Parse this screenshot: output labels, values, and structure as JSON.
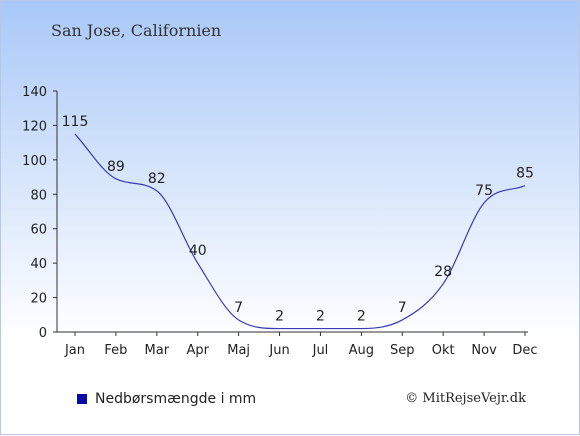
{
  "chart_data": {
    "type": "line",
    "title": "San Jose, Californien",
    "categories": [
      "Jan",
      "Feb",
      "Mar",
      "Apr",
      "Maj",
      "Jun",
      "Jul",
      "Aug",
      "Sep",
      "Okt",
      "Nov",
      "Dec"
    ],
    "series": [
      {
        "name": "Nedbørsmængde i mm",
        "values": [
          115,
          89,
          82,
          40,
          7,
          2,
          2,
          2,
          7,
          28,
          75,
          85
        ],
        "color": "#3a3ab5"
      }
    ],
    "yticks": [
      "0",
      "20",
      "40",
      "60",
      "80",
      "100",
      "120",
      "140"
    ],
    "ylim": [
      0,
      140
    ],
    "legend_color": "#0a0aa8",
    "legend_position": "bottom-left"
  },
  "credit": "© MitRejseVejr.dk"
}
